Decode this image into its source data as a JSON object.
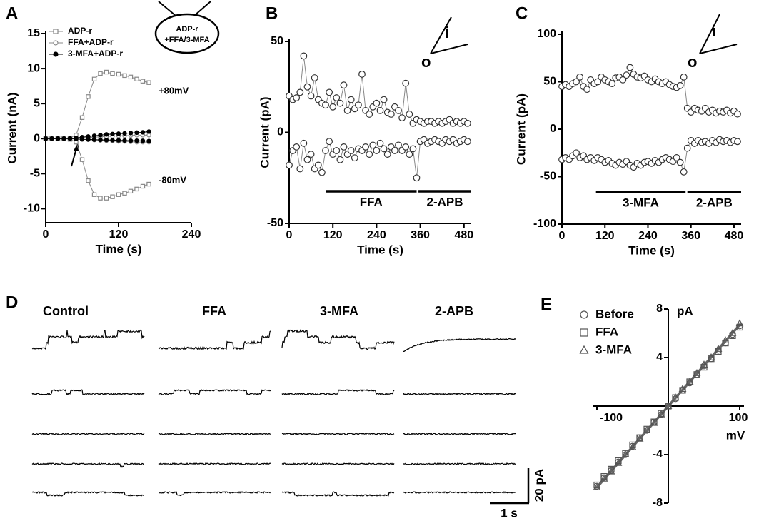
{
  "chart_data": [
    {
      "type": "line",
      "panel": "A",
      "x_label": "Time (s)",
      "y_label": "Current (nA)",
      "x": [
        0,
        10,
        20,
        30,
        40,
        50,
        60,
        70,
        80,
        90,
        100,
        110,
        120,
        130,
        140,
        150,
        160,
        170
      ],
      "series": [
        {
          "name": "ADP-r",
          "color": "#888888",
          "marker": "square",
          "filled": false,
          "values_pos": [
            0,
            0,
            0,
            0,
            0.1,
            0.5,
            3,
            6,
            8.5,
            9.3,
            9.5,
            9.3,
            9.2,
            9,
            8.8,
            8.5,
            8.2,
            8
          ],
          "values_neg": [
            0,
            0,
            0,
            0,
            -0.1,
            -0.5,
            -3,
            -6,
            -8,
            -8.5,
            -8.5,
            -8.3,
            -8,
            -7.8,
            -7.5,
            -7.2,
            -6.8,
            -6.5
          ]
        },
        {
          "name": "FFA+ADP-r",
          "color": "#888888",
          "marker": "circle",
          "filled": false,
          "values_pos": [
            0,
            0,
            0,
            0,
            0,
            0.05,
            0.1,
            0.15,
            0.2,
            0.25,
            0.3,
            0.35,
            0.4,
            0.4,
            0.45,
            0.5,
            0.5,
            0.5
          ],
          "values_neg": [
            0,
            0,
            0,
            0,
            0,
            -0.05,
            -0.1,
            -0.15,
            -0.2,
            -0.25,
            -0.3,
            -0.35,
            -0.4,
            -0.4,
            -0.45,
            -0.5,
            -0.5,
            -0.5
          ]
        },
        {
          "name": "3-MFA+ADP-r",
          "color": "#000000",
          "marker": "circle",
          "filled": true,
          "values_pos": [
            0,
            0,
            0,
            0,
            0.05,
            0.1,
            0.2,
            0.3,
            0.4,
            0.5,
            0.6,
            0.65,
            0.7,
            0.75,
            0.8,
            0.85,
            0.9,
            1
          ],
          "values_neg": [
            0,
            0,
            0,
            0,
            -0.02,
            -0.05,
            -0.1,
            -0.12,
            -0.15,
            -0.18,
            -0.2,
            -0.22,
            -0.25,
            -0.27,
            -0.3,
            -0.3,
            -0.32,
            -0.35
          ]
        }
      ],
      "label_pos": "+80mV",
      "label_neg": "-80mV",
      "inset_text": [
        "ADP-r",
        "+FFA/3-MFA"
      ],
      "xlim": [
        0,
        240
      ],
      "xticks": [
        0,
        120,
        240
      ],
      "ylim": [
        -12,
        15
      ],
      "yticks": [
        -10,
        -5,
        0,
        5,
        10,
        15
      ]
    },
    {
      "type": "scatter",
      "panel": "B",
      "x_label": "Time (s)",
      "y_label": "Current (pA)",
      "x": [
        0,
        10,
        20,
        30,
        40,
        50,
        60,
        70,
        80,
        90,
        100,
        110,
        120,
        130,
        140,
        150,
        160,
        170,
        180,
        190,
        200,
        210,
        220,
        230,
        240,
        250,
        260,
        270,
        280,
        290,
        300,
        310,
        320,
        330,
        340,
        350,
        360,
        370,
        380,
        390,
        400,
        410,
        420,
        430,
        440,
        450,
        460,
        470,
        480,
        490
      ],
      "series": [
        {
          "color": "#888888",
          "values": [
            20,
            18,
            19,
            22,
            42,
            25,
            20,
            30,
            18,
            16,
            15,
            22,
            14,
            19,
            16,
            26,
            12,
            18,
            13,
            15,
            32,
            12,
            10,
            14,
            16,
            12,
            18,
            11,
            10,
            14,
            12,
            8,
            27,
            10,
            5,
            7,
            6,
            5,
            6,
            6,
            5,
            6,
            5,
            6,
            7,
            5,
            6,
            5,
            6,
            5
          ]
        },
        {
          "color": "#888888",
          "values": [
            -18,
            -10,
            -8,
            -20,
            -6,
            -15,
            -12,
            -20,
            -18,
            -22,
            -10,
            -5,
            -12,
            -10,
            -15,
            -8,
            -12,
            -10,
            -14,
            -9,
            -10,
            -8,
            -12,
            -7,
            -10,
            -6,
            -9,
            -12,
            -8,
            -10,
            -7,
            -10,
            -8,
            -12,
            -9,
            -25,
            -5,
            -4,
            -6,
            -5,
            -4,
            -5,
            -6,
            -4,
            -5,
            -4,
            -6,
            -5,
            -4,
            -5
          ]
        }
      ],
      "bars": [
        {
          "label": "FFA",
          "start": 100,
          "end": 350
        },
        {
          "label": "2-APB",
          "start": 355,
          "end": 500
        }
      ],
      "pipette_labels": [
        "o",
        "i"
      ],
      "xlim": [
        0,
        500
      ],
      "xticks": [
        0,
        120,
        240,
        360,
        480
      ],
      "ylim": [
        -50,
        50
      ],
      "yticks": [
        -50,
        0,
        50
      ]
    },
    {
      "type": "scatter",
      "panel": "C",
      "x_label": "Time (s)",
      "y_label": "Current (pA)",
      "x": [
        0,
        10,
        20,
        30,
        40,
        50,
        60,
        70,
        80,
        90,
        100,
        110,
        120,
        130,
        140,
        150,
        160,
        170,
        180,
        190,
        200,
        210,
        220,
        230,
        240,
        250,
        260,
        270,
        280,
        290,
        300,
        310,
        320,
        330,
        340,
        350,
        360,
        370,
        380,
        390,
        400,
        410,
        420,
        430,
        440,
        450,
        460,
        470,
        480,
        490
      ],
      "series": [
        {
          "color": "#888888",
          "values": [
            45,
            47,
            45,
            48,
            50,
            55,
            45,
            42,
            52,
            48,
            50,
            55,
            52,
            50,
            48,
            54,
            55,
            52,
            57,
            65,
            58,
            55,
            54,
            56,
            52,
            50,
            53,
            50,
            48,
            50,
            47,
            45,
            44,
            46,
            55,
            22,
            18,
            22,
            20,
            19,
            22,
            18,
            20,
            17,
            19,
            18,
            20,
            17,
            19,
            16
          ]
        },
        {
          "color": "#888888",
          "values": [
            -32,
            -30,
            -32,
            -28,
            -25,
            -30,
            -28,
            -32,
            -30,
            -33,
            -30,
            -32,
            -35,
            -33,
            -36,
            -38,
            -35,
            -37,
            -34,
            -38,
            -40,
            -36,
            -38,
            -35,
            -34,
            -36,
            -33,
            -35,
            -32,
            -30,
            -32,
            -34,
            -30,
            -35,
            -45,
            -20,
            -12,
            -15,
            -12,
            -14,
            -13,
            -15,
            -12,
            -14,
            -11,
            -13,
            -12,
            -14,
            -12,
            -13
          ]
        }
      ],
      "bars": [
        {
          "label": "3-MFA",
          "start": 95,
          "end": 345
        },
        {
          "label": "2-APB",
          "start": 350,
          "end": 500
        }
      ],
      "pipette_labels": [
        "o",
        "i"
      ],
      "xlim": [
        0,
        500
      ],
      "xticks": [
        0,
        120,
        240,
        360,
        480
      ],
      "ylim": [
        -100,
        100
      ],
      "yticks": [
        -100,
        -50,
        0,
        50,
        100
      ]
    },
    {
      "type": "traces",
      "panel": "D",
      "columns": [
        "Control",
        "FFA",
        "3-MFA",
        "2-APB"
      ],
      "scale_y": "20 pA",
      "scale_x": "1 s"
    },
    {
      "type": "scatter",
      "panel": "E",
      "centered_axes": true,
      "x_unit": "mV",
      "y_unit": "pA",
      "x": [
        -100,
        -90,
        -80,
        -70,
        -60,
        -50,
        -40,
        -30,
        -20,
        -10,
        0,
        10,
        20,
        30,
        40,
        50,
        60,
        70,
        80,
        90,
        100
      ],
      "series": [
        {
          "name": "Before",
          "color": "#555555",
          "marker": "circle",
          "values": [
            -6.6,
            -5.9,
            -5.3,
            -4.6,
            -4.0,
            -3.3,
            -2.6,
            -2.0,
            -1.3,
            -0.7,
            0,
            0.6,
            1.3,
            1.9,
            2.6,
            3.3,
            3.9,
            4.6,
            5.2,
            5.9,
            6.6
          ]
        },
        {
          "name": "FFA",
          "color": "#555555",
          "marker": "square",
          "values": [
            -6.5,
            -5.8,
            -5.2,
            -4.5,
            -3.9,
            -3.2,
            -2.6,
            -1.9,
            -1.3,
            -0.6,
            0,
            0.7,
            1.3,
            2.0,
            2.6,
            3.2,
            3.9,
            4.5,
            5.2,
            5.8,
            6.5
          ]
        },
        {
          "name": "3-MFA",
          "color": "#555555",
          "marker": "triangle",
          "values": [
            -6.7,
            -6.0,
            -5.4,
            -4.7,
            -4.0,
            -3.4,
            -2.7,
            -2.0,
            -1.4,
            -0.7,
            0,
            0.7,
            1.4,
            2.0,
            2.7,
            3.4,
            4.0,
            4.7,
            5.4,
            6.0,
            6.8
          ]
        }
      ],
      "fit": {
        "color": "#666666",
        "x": [
          -100,
          100
        ],
        "y": [
          -6.7,
          6.7
        ]
      },
      "xlim": [
        -106,
        106
      ],
      "xticks": [
        -100,
        100
      ],
      "ylim": [
        -8,
        8
      ],
      "yticks": [
        -8,
        -4,
        4,
        8
      ]
    }
  ]
}
